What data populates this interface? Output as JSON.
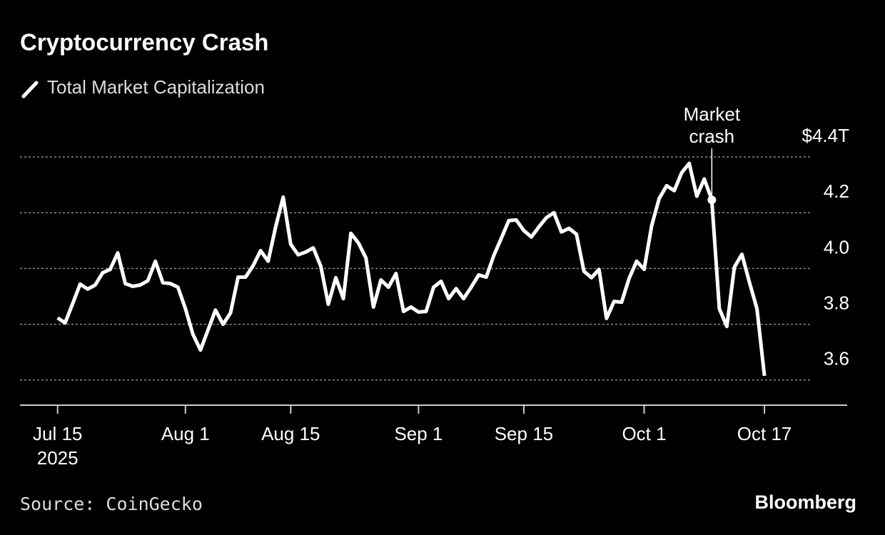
{
  "chart_data": {
    "type": "line",
    "title": "Cryptocurrency Crash",
    "source": "Source: CoinGecko",
    "brand": "Bloomberg",
    "x": [
      "2025-07-15",
      "2025-07-16",
      "2025-07-17",
      "2025-07-18",
      "2025-07-19",
      "2025-07-20",
      "2025-07-21",
      "2025-07-22",
      "2025-07-23",
      "2025-07-24",
      "2025-07-25",
      "2025-07-26",
      "2025-07-27",
      "2025-07-28",
      "2025-07-29",
      "2025-07-30",
      "2025-07-31",
      "2025-08-01",
      "2025-08-02",
      "2025-08-03",
      "2025-08-04",
      "2025-08-05",
      "2025-08-06",
      "2025-08-07",
      "2025-08-08",
      "2025-08-09",
      "2025-08-10",
      "2025-08-11",
      "2025-08-12",
      "2025-08-13",
      "2025-08-14",
      "2025-08-15",
      "2025-08-16",
      "2025-08-17",
      "2025-08-18",
      "2025-08-19",
      "2025-08-20",
      "2025-08-21",
      "2025-08-22",
      "2025-08-23",
      "2025-08-24",
      "2025-08-25",
      "2025-08-26",
      "2025-08-27",
      "2025-08-28",
      "2025-08-29",
      "2025-08-30",
      "2025-08-31",
      "2025-09-01",
      "2025-09-02",
      "2025-09-03",
      "2025-09-04",
      "2025-09-05",
      "2025-09-06",
      "2025-09-07",
      "2025-09-08",
      "2025-09-09",
      "2025-09-10",
      "2025-09-11",
      "2025-09-12",
      "2025-09-13",
      "2025-09-14",
      "2025-09-15",
      "2025-09-16",
      "2025-09-17",
      "2025-09-18",
      "2025-09-19",
      "2025-09-20",
      "2025-09-21",
      "2025-09-22",
      "2025-09-23",
      "2025-09-24",
      "2025-09-25",
      "2025-09-26",
      "2025-09-27",
      "2025-09-28",
      "2025-09-29",
      "2025-09-30",
      "2025-10-01",
      "2025-10-02",
      "2025-10-03",
      "2025-10-04",
      "2025-10-05",
      "2025-10-06",
      "2025-10-07",
      "2025-10-08",
      "2025-10-09",
      "2025-10-10",
      "2025-10-11",
      "2025-10-12",
      "2025-10-13",
      "2025-10-14",
      "2025-10-15",
      "2025-10-16",
      "2025-10-17"
    ],
    "series": [
      {
        "name": "Total Market Capitalization",
        "color": "#ffffff",
        "values": [
          3.823,
          3.805,
          3.874,
          3.944,
          3.926,
          3.941,
          3.985,
          3.997,
          4.056,
          3.946,
          3.936,
          3.941,
          3.956,
          4.026,
          3.949,
          3.946,
          3.933,
          3.856,
          3.764,
          3.708,
          3.779,
          3.851,
          3.8,
          3.841,
          3.969,
          3.969,
          4.01,
          4.064,
          4.026,
          4.149,
          4.256,
          4.087,
          4.049,
          4.059,
          4.074,
          4.008,
          3.872,
          3.967,
          3.892,
          4.126,
          4.092,
          4.038,
          3.862,
          3.959,
          3.933,
          3.982,
          3.846,
          3.862,
          3.844,
          3.846,
          3.933,
          3.954,
          3.892,
          3.928,
          3.892,
          3.933,
          3.977,
          3.969,
          4.046,
          4.108,
          4.172,
          4.174,
          4.136,
          4.113,
          4.149,
          4.182,
          4.2,
          4.131,
          4.144,
          4.123,
          3.99,
          3.967,
          3.997,
          3.821,
          3.882,
          3.879,
          3.964,
          4.026,
          3.997,
          4.154,
          4.251,
          4.297,
          4.279,
          4.344,
          4.377,
          4.259,
          4.321,
          4.246,
          3.856,
          3.792,
          4.005,
          4.051,
          3.951,
          3.856,
          3.615
        ]
      }
    ],
    "annotation": {
      "text": "Market\ncrash",
      "x": "2025-10-10"
    },
    "xlim": [
      "2025-07-10",
      "2025-10-28"
    ],
    "xticks": [
      {
        "value": "2025-07-15",
        "label": "Jul 15\n2025"
      },
      {
        "value": "2025-08-01",
        "label": "Aug 1"
      },
      {
        "value": "2025-08-15",
        "label": "Aug 15"
      },
      {
        "value": "2025-09-01",
        "label": "Sep 1"
      },
      {
        "value": "2025-09-15",
        "label": "Sep 15"
      },
      {
        "value": "2025-10-01",
        "label": "Oct 1"
      },
      {
        "value": "2025-10-17",
        "label": "Oct 17"
      }
    ],
    "ylim": [
      3.51,
      4.4
    ],
    "yticks": [
      {
        "value": 4.4,
        "label": "$4.4T"
      },
      4.2,
      {
        "value": 4,
        "label": "4.0"
      },
      3.8,
      3.6
    ],
    "grid": true
  }
}
